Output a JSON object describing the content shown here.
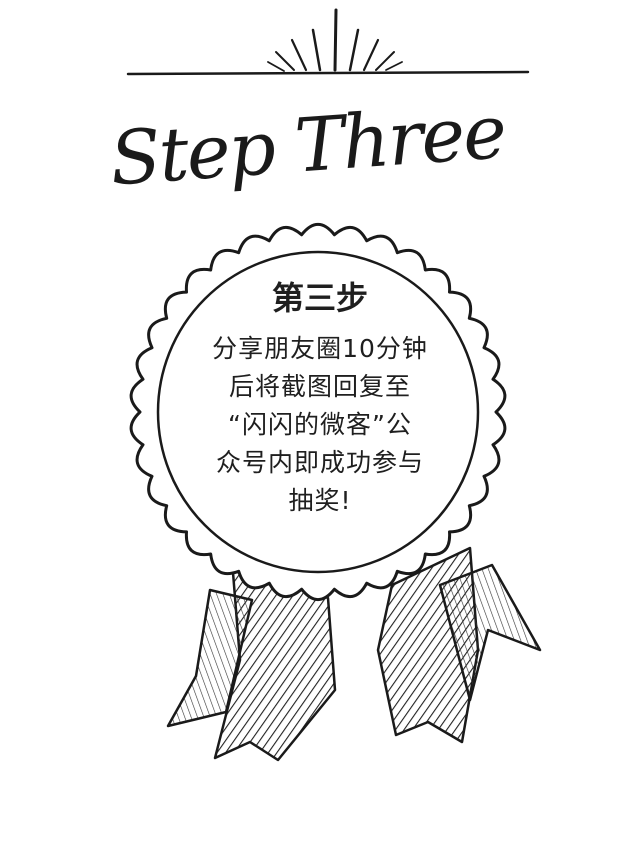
{
  "heading": "Step Three",
  "badge": {
    "title": "第三步",
    "lines": [
      "分享朋友圈10分钟",
      "后将截图回复至",
      "“闪闪的微客”公",
      "众号内即成功参与",
      "抽奖!"
    ]
  },
  "colors": {
    "ink": "#1f1f1f",
    "background": "#ffffff"
  },
  "icons": [
    "sunburst-icon",
    "rosette-badge-icon",
    "ribbon-icon"
  ]
}
